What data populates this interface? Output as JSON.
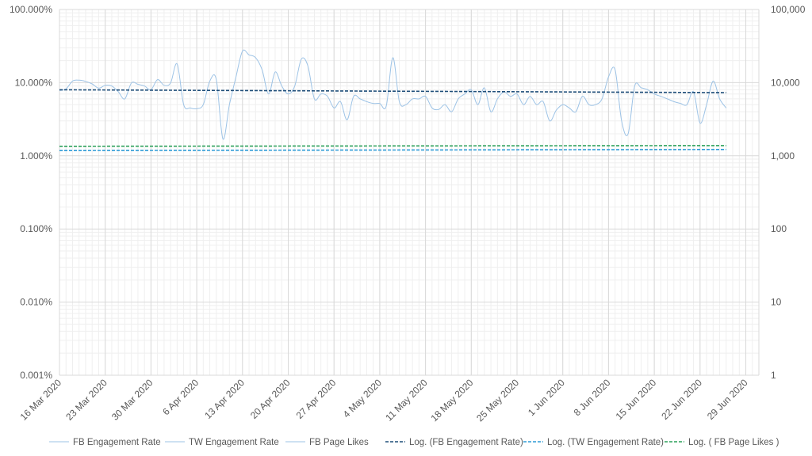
{
  "chart_data": {
    "type": "line",
    "title": "",
    "x_labels": [
      "16 Mar 2020",
      "23 Mar 2020",
      "30 Mar 2020",
      "6 Apr 2020",
      "13 Apr 2020",
      "20 Apr 2020",
      "27 Apr 2020",
      "4 May 2020",
      "11 May 2020",
      "18 May 2020",
      "25 May 2020",
      "1 Jun 2020",
      "8 Jun 2020",
      "15 Jun 2020",
      "22 Jun 2020",
      "29 Jun 2020"
    ],
    "x_range": [
      "2020-03-16",
      "2020-07-01"
    ],
    "y_left": {
      "scale": "log",
      "min": 1e-05,
      "max": 1,
      "ticks": [
        {
          "value": 1,
          "label": "100.000%"
        },
        {
          "value": 0.1,
          "label": "10.000%"
        },
        {
          "value": 0.01,
          "label": "1.000%"
        },
        {
          "value": 0.001,
          "label": "0.100%"
        },
        {
          "value": 0.0001,
          "label": "0.010%"
        },
        {
          "value": 1e-05,
          "label": "0.001%"
        }
      ]
    },
    "y_right": {
      "scale": "log",
      "min": 1,
      "max": 100000,
      "ticks": [
        {
          "value": 100000,
          "label": "100,000"
        },
        {
          "value": 10000,
          "label": "10,000"
        },
        {
          "value": 1000,
          "label": "1,000"
        },
        {
          "value": 100,
          "label": "100"
        },
        {
          "value": 10,
          "label": "10"
        },
        {
          "value": 1,
          "label": "1"
        }
      ]
    },
    "grid": true,
    "legend_position": "bottom",
    "series": [
      {
        "name": "FB Engagement Rate",
        "axis": "left",
        "style": "solid",
        "color": "#9DC3E6",
        "points": [
          [
            "2020-03-16",
            0.078
          ],
          [
            "2020-03-17",
            0.082
          ],
          [
            "2020-03-18",
            0.105
          ],
          [
            "2020-03-19",
            0.108
          ],
          [
            "2020-03-20",
            0.104
          ],
          [
            "2020-03-21",
            0.096
          ],
          [
            "2020-03-22",
            0.084
          ],
          [
            "2020-03-23",
            0.092
          ],
          [
            "2020-03-24",
            0.09
          ],
          [
            "2020-03-25",
            0.075
          ],
          [
            "2020-03-26",
            0.06
          ],
          [
            "2020-03-27",
            0.099
          ],
          [
            "2020-03-28",
            0.095
          ],
          [
            "2020-03-29",
            0.09
          ],
          [
            "2020-03-30",
            0.08
          ],
          [
            "2020-03-31",
            0.11
          ],
          [
            "2020-04-01",
            0.092
          ],
          [
            "2020-04-02",
            0.099
          ],
          [
            "2020-04-03",
            0.18
          ],
          [
            "2020-04-04",
            0.05
          ],
          [
            "2020-04-05",
            0.045
          ],
          [
            "2020-04-06",
            0.044
          ],
          [
            "2020-04-07",
            0.05
          ],
          [
            "2020-04-08",
            0.105
          ],
          [
            "2020-04-09",
            0.11
          ],
          [
            "2020-04-10",
            0.017
          ],
          [
            "2020-04-11",
            0.05
          ],
          [
            "2020-04-12",
            0.12
          ],
          [
            "2020-04-13",
            0.27
          ],
          [
            "2020-04-14",
            0.24
          ],
          [
            "2020-04-15",
            0.22
          ],
          [
            "2020-04-16",
            0.15
          ],
          [
            "2020-04-17",
            0.07
          ],
          [
            "2020-04-18",
            0.14
          ],
          [
            "2020-04-19",
            0.09
          ],
          [
            "2020-04-20",
            0.07
          ],
          [
            "2020-04-21",
            0.09
          ],
          [
            "2020-04-22",
            0.21
          ],
          [
            "2020-04-23",
            0.17
          ],
          [
            "2020-04-24",
            0.06
          ],
          [
            "2020-04-25",
            0.07
          ],
          [
            "2020-04-26",
            0.065
          ],
          [
            "2020-04-27",
            0.045
          ],
          [
            "2020-04-28",
            0.055
          ],
          [
            "2020-04-29",
            0.031
          ],
          [
            "2020-04-30",
            0.065
          ],
          [
            "2020-05-01",
            0.06
          ],
          [
            "2020-05-02",
            0.055
          ],
          [
            "2020-05-03",
            0.052
          ],
          [
            "2020-05-04",
            0.052
          ],
          [
            "2020-05-05",
            0.048
          ],
          [
            "2020-05-06",
            0.22
          ],
          [
            "2020-05-07",
            0.055
          ],
          [
            "2020-05-08",
            0.05
          ],
          [
            "2020-05-09",
            0.06
          ],
          [
            "2020-05-10",
            0.06
          ],
          [
            "2020-05-11",
            0.065
          ],
          [
            "2020-05-12",
            0.045
          ],
          [
            "2020-05-13",
            0.043
          ],
          [
            "2020-05-14",
            0.05
          ],
          [
            "2020-05-15",
            0.04
          ],
          [
            "2020-05-16",
            0.06
          ],
          [
            "2020-05-17",
            0.07
          ],
          [
            "2020-05-18",
            0.08
          ],
          [
            "2020-05-19",
            0.05
          ],
          [
            "2020-05-20",
            0.085
          ],
          [
            "2020-05-21",
            0.04
          ],
          [
            "2020-05-22",
            0.06
          ],
          [
            "2020-05-23",
            0.075
          ],
          [
            "2020-05-24",
            0.065
          ],
          [
            "2020-05-25",
            0.07
          ],
          [
            "2020-05-26",
            0.05
          ],
          [
            "2020-05-27",
            0.065
          ],
          [
            "2020-05-28",
            0.05
          ],
          [
            "2020-05-29",
            0.055
          ],
          [
            "2020-05-30",
            0.03
          ],
          [
            "2020-05-31",
            0.042
          ],
          [
            "2020-06-01",
            0.05
          ],
          [
            "2020-06-02",
            0.045
          ],
          [
            "2020-06-03",
            0.04
          ],
          [
            "2020-06-04",
            0.065
          ],
          [
            "2020-06-05",
            0.05
          ],
          [
            "2020-06-06",
            0.05
          ],
          [
            "2020-06-07",
            0.06
          ],
          [
            "2020-06-08",
            0.12
          ],
          [
            "2020-06-09",
            0.15
          ],
          [
            "2020-06-10",
            0.03
          ],
          [
            "2020-06-11",
            0.02
          ],
          [
            "2020-06-12",
            0.09
          ],
          [
            "2020-06-13",
            0.085
          ],
          [
            "2020-06-14",
            0.08
          ],
          [
            "2020-06-15",
            0.07
          ],
          [
            "2020-06-16",
            0.065
          ],
          [
            "2020-06-17",
            0.06
          ],
          [
            "2020-06-18",
            0.055
          ],
          [
            "2020-06-19",
            0.052
          ],
          [
            "2020-06-20",
            0.05
          ],
          [
            "2020-06-21",
            0.075
          ],
          [
            "2020-06-22",
            0.028
          ],
          [
            "2020-06-23",
            0.05
          ],
          [
            "2020-06-24",
            0.105
          ],
          [
            "2020-06-25",
            0.06
          ],
          [
            "2020-06-26",
            0.045
          ]
        ]
      },
      {
        "name": "TW Engagement Rate",
        "axis": "left",
        "style": "solid",
        "color": "#9DC3E6",
        "points": []
      },
      {
        "name": "FB Page Likes",
        "axis": "right",
        "style": "solid",
        "color": "#9DC3E6",
        "points": []
      },
      {
        "name": "Log. (FB Engagement Rate)",
        "axis": "left",
        "style": "dashed",
        "color": "#1F4E79",
        "points": [
          [
            "2020-03-16",
            0.08
          ],
          [
            "2020-06-26",
            0.073
          ]
        ]
      },
      {
        "name": "Log. (TW Engagement Rate)",
        "axis": "left",
        "style": "dashed",
        "color": "#2E9BD6",
        "points": [
          [
            "2020-03-16",
            0.0118
          ],
          [
            "2020-06-26",
            0.0122
          ]
        ]
      },
      {
        "name": "Log. ( FB Page Likes )",
        "axis": "right",
        "style": "dashed",
        "color": "#2CA05A",
        "points": [
          [
            "2020-03-16",
            1350
          ],
          [
            "2020-06-26",
            1380
          ]
        ]
      }
    ]
  }
}
